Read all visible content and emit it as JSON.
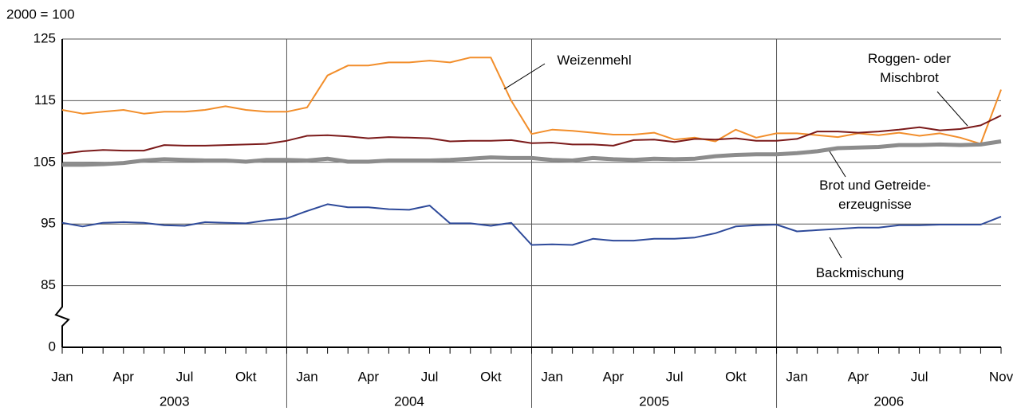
{
  "chart_data": {
    "type": "line",
    "unit_label": "2000 = 100",
    "categories": [
      "Jan",
      null,
      null,
      "Apr",
      null,
      null,
      "Jul",
      null,
      null,
      "Okt",
      null,
      null,
      "Jan",
      null,
      null,
      "Apr",
      null,
      null,
      "Jul",
      null,
      null,
      "Okt",
      null,
      null,
      "Jan",
      null,
      null,
      "Apr",
      null,
      null,
      "Jul",
      null,
      null,
      "Okt",
      null,
      null,
      "Jan",
      null,
      null,
      "Apr",
      null,
      null,
      "Jul",
      null,
      null,
      null,
      "Nov"
    ],
    "years": [
      {
        "label": "2003",
        "months": 12
      },
      {
        "label": "2004",
        "months": 12
      },
      {
        "label": "2005",
        "months": 12
      },
      {
        "label": "2006",
        "months": 11
      }
    ],
    "ylim": [
      0,
      125
    ],
    "yticks": [
      0,
      85,
      95,
      105,
      115,
      125
    ],
    "broken_axis": true,
    "grid": true,
    "series": [
      {
        "name": "Weizenmehl",
        "color": "#f28e2b",
        "width": 2,
        "values": [
          113.5,
          112.9,
          113.2,
          113.5,
          112.9,
          113.2,
          113.2,
          113.5,
          114.1,
          113.5,
          113.2,
          113.2,
          113.9,
          119.1,
          120.7,
          120.7,
          121.2,
          121.2,
          121.5,
          121.2,
          122.0,
          122.0,
          115.0,
          109.6,
          110.3,
          110.1,
          109.8,
          109.5,
          109.5,
          109.8,
          108.7,
          109.0,
          108.4,
          110.3,
          109.0,
          109.7,
          109.7,
          109.4,
          109.1,
          109.7,
          109.4,
          109.8,
          109.3,
          109.7,
          109.0,
          108.0,
          116.8
        ]
      },
      {
        "name": "Roggen- oder\nMischbrot",
        "color": "#7b1a1a",
        "width": 2,
        "values": [
          106.4,
          106.8,
          107.0,
          106.9,
          106.9,
          107.8,
          107.7,
          107.7,
          107.8,
          107.9,
          108.0,
          108.5,
          109.3,
          109.4,
          109.2,
          108.9,
          109.1,
          109.0,
          108.9,
          108.4,
          108.5,
          108.5,
          108.6,
          108.1,
          108.2,
          107.9,
          107.9,
          107.7,
          108.6,
          108.7,
          108.3,
          108.8,
          108.7,
          108.9,
          108.5,
          108.5,
          108.8,
          110.0,
          110.0,
          109.8,
          110.0,
          110.3,
          110.7,
          110.2,
          110.4,
          111.0,
          112.6
        ]
      },
      {
        "name": "Brot und Getreide-\nerzeugnisse",
        "color": "#8c8c8c",
        "width": 5,
        "values": [
          104.6,
          104.6,
          104.7,
          104.9,
          105.3,
          105.5,
          105.4,
          105.3,
          105.3,
          105.1,
          105.4,
          105.4,
          105.3,
          105.6,
          105.1,
          105.1,
          105.3,
          105.3,
          105.3,
          105.4,
          105.6,
          105.8,
          105.7,
          105.7,
          105.4,
          105.3,
          105.7,
          105.5,
          105.4,
          105.6,
          105.5,
          105.6,
          106.0,
          106.2,
          106.3,
          106.3,
          106.5,
          106.8,
          107.3,
          107.4,
          107.5,
          107.8,
          107.8,
          107.9,
          107.8,
          107.9,
          108.4
        ]
      },
      {
        "name": "Backmischung",
        "color": "#2e4a9a",
        "width": 2,
        "values": [
          95.2,
          94.6,
          95.2,
          95.3,
          95.2,
          94.8,
          94.7,
          95.3,
          95.2,
          95.1,
          95.6,
          95.9,
          97.1,
          98.2,
          97.7,
          97.7,
          97.4,
          97.3,
          98.0,
          95.1,
          95.1,
          94.7,
          95.2,
          91.6,
          91.7,
          91.6,
          92.6,
          92.3,
          92.3,
          92.6,
          92.6,
          92.8,
          93.5,
          94.6,
          94.8,
          94.9,
          93.8,
          94.0,
          94.2,
          94.4,
          94.4,
          94.8,
          94.8,
          94.9,
          94.9,
          94.9,
          96.2
        ]
      }
    ]
  }
}
